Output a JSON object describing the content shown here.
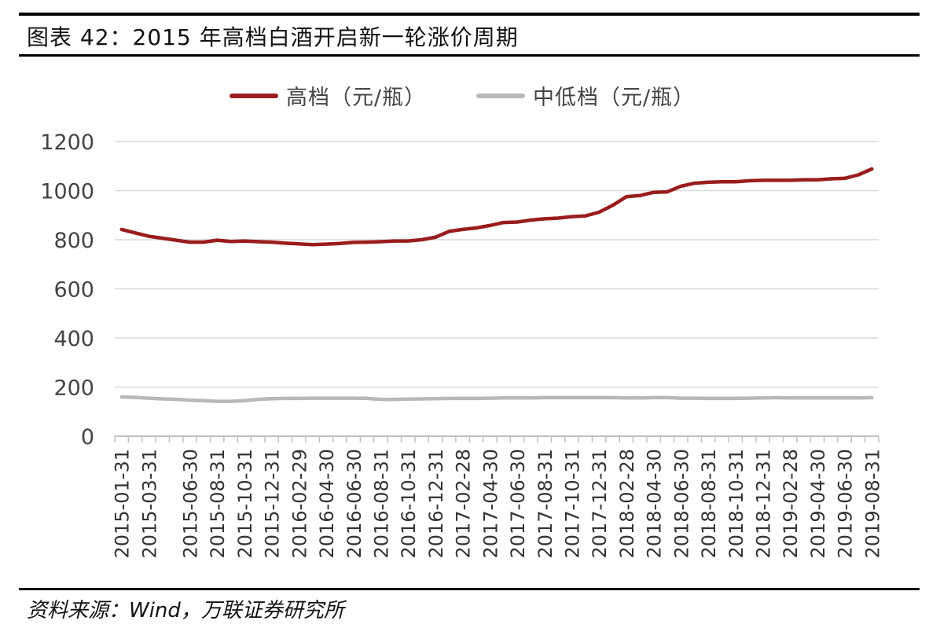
{
  "header": {
    "title": "图表 42：2015 年高档白酒开启新一轮涨价周期"
  },
  "footer": {
    "source": "资料来源：Wind，万联证券研究所"
  },
  "colors": {
    "series_high": "#9b1c1c",
    "series_low": "#b8b8b8",
    "grid": "#d9d9d9",
    "axis": "#bfbfbf",
    "text": "#444444"
  },
  "chart_data": {
    "type": "line",
    "title": "",
    "xlabel": "",
    "ylabel": "",
    "ylim": [
      0,
      1200
    ],
    "yticks": [
      0,
      200,
      400,
      600,
      800,
      1000,
      1200
    ],
    "grid": true,
    "legend_position": "top",
    "x": [
      "2015-01-31",
      "2015-02-28",
      "2015-03-31",
      "2015-04-30",
      "2015-05-31",
      "2015-06-30",
      "2015-07-31",
      "2015-08-31",
      "2015-09-30",
      "2015-10-31",
      "2015-11-30",
      "2015-12-31",
      "2016-01-31",
      "2016-02-29",
      "2016-03-31",
      "2016-04-30",
      "2016-05-31",
      "2016-06-30",
      "2016-07-31",
      "2016-08-31",
      "2016-09-30",
      "2016-10-31",
      "2016-11-30",
      "2016-12-31",
      "2017-01-31",
      "2017-02-28",
      "2017-03-31",
      "2017-04-30",
      "2017-05-31",
      "2017-06-30",
      "2017-07-31",
      "2017-08-31",
      "2017-09-30",
      "2017-10-31",
      "2017-11-30",
      "2017-12-31",
      "2018-01-31",
      "2018-02-28",
      "2018-03-31",
      "2018-04-30",
      "2018-05-31",
      "2018-06-30",
      "2018-07-31",
      "2018-08-31",
      "2018-09-30",
      "2018-10-31",
      "2018-11-30",
      "2018-12-31",
      "2019-01-31",
      "2019-02-28",
      "2019-03-31",
      "2019-04-30",
      "2019-05-31",
      "2019-06-30",
      "2019-07-31",
      "2019-08-31"
    ],
    "xticklabels": [
      "2015-01-31",
      "2015-03-31",
      "2015-06-30",
      "2015-08-31",
      "2015-10-31",
      "2015-12-31",
      "2016-02-29",
      "2016-04-30",
      "2016-06-30",
      "2016-08-31",
      "2016-10-31",
      "2016-12-31",
      "2017-02-28",
      "2017-04-30",
      "2017-06-30",
      "2017-08-31",
      "2017-10-31",
      "2017-12-31",
      "2018-02-28",
      "2018-04-30",
      "2018-06-30",
      "2018-08-31",
      "2018-10-31",
      "2018-12-31",
      "2019-02-28",
      "2019-04-30",
      "2019-06-30",
      "2019-08-31"
    ],
    "series": [
      {
        "name": "高档（元/瓶）",
        "color": "#9b1c1c",
        "values": [
          842,
          828,
          814,
          806,
          798,
          790,
          790,
          798,
          793,
          795,
          792,
          790,
          786,
          783,
          780,
          782,
          785,
          789,
          790,
          792,
          795,
          795,
          800,
          810,
          834,
          842,
          848,
          858,
          870,
          872,
          880,
          885,
          888,
          894,
          897,
          912,
          940,
          975,
          980,
          993,
          995,
          1018,
          1030,
          1034,
          1036,
          1036,
          1040,
          1042,
          1042,
          1042,
          1044,
          1044,
          1048,
          1050,
          1064,
          1088
        ]
      },
      {
        "name": "中低档（元/瓶）",
        "color": "#b8b8b8",
        "values": [
          160,
          158,
          155,
          152,
          150,
          147,
          145,
          142,
          142,
          145,
          150,
          153,
          154,
          154,
          155,
          155,
          155,
          155,
          154,
          150,
          150,
          151,
          152,
          153,
          154,
          154,
          154,
          155,
          156,
          156,
          156,
          157,
          157,
          157,
          157,
          157,
          157,
          156,
          156,
          157,
          157,
          155,
          155,
          154,
          154,
          154,
          155,
          156,
          157,
          156,
          156,
          156,
          156,
          156,
          156,
          157
        ]
      }
    ]
  }
}
